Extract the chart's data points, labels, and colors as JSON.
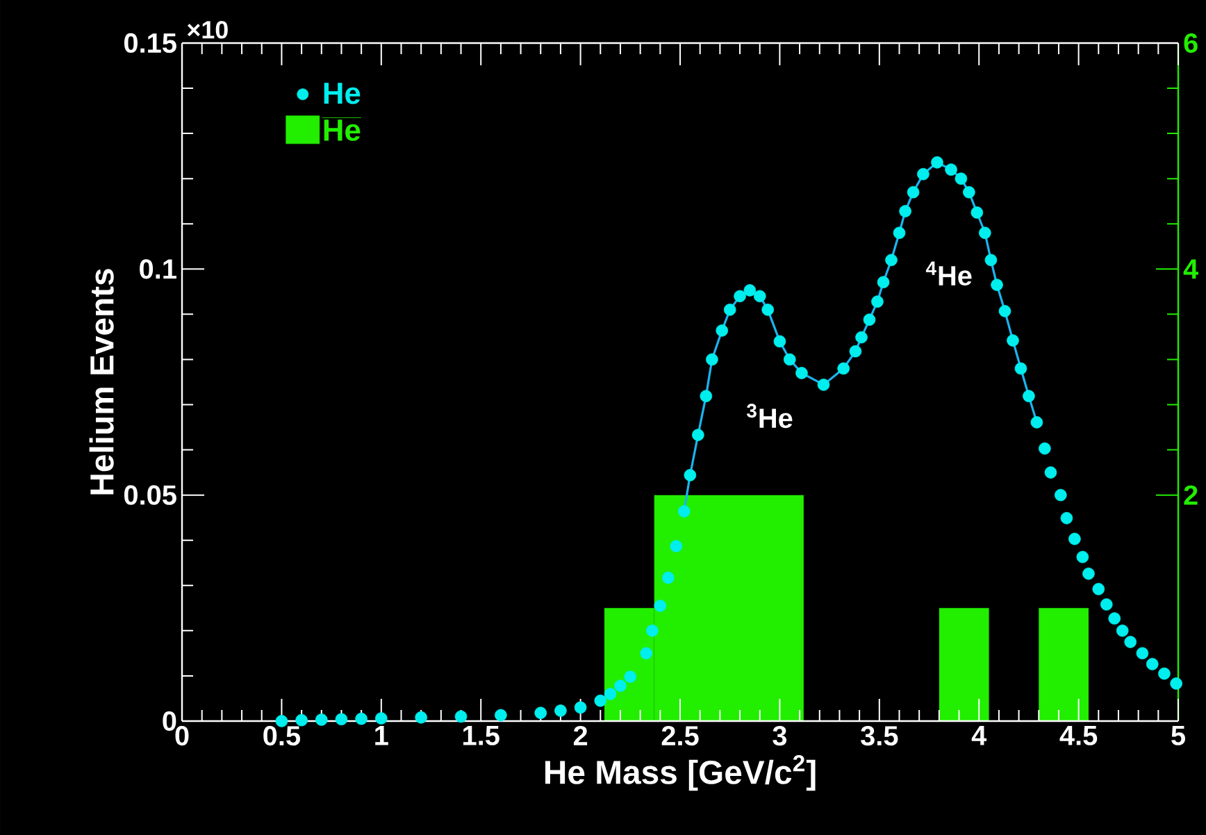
{
  "chart_data": {
    "type": "scatter",
    "xlabel": "He Mass [GeV/c$^{2}$]",
    "ylabel": "Helium Events",
    "xlim": [
      0,
      5
    ],
    "xticks": [
      0,
      0.5,
      1,
      1.5,
      2,
      2.5,
      3,
      3.5,
      4,
      4.5,
      5
    ],
    "ylim": [
      0,
      0.15
    ],
    "yticks": [
      0,
      0.05,
      0.1,
      0.15
    ],
    "y2lim": [
      0,
      6
    ],
    "y2ticks": [
      2,
      4,
      6
    ],
    "legend": "top left",
    "grid": false,
    "marker": "circle",
    "annotations": [
      "×10",
      "$^{3}$He",
      "$^{4}$He"
    ],
    "series": [
      {
        "name": "He",
        "color": "#00eeee",
        "x": [
          0.5,
          0.6,
          0.7,
          0.8,
          0.9,
          1.0,
          1.2,
          1.4,
          1.6,
          1.8,
          1.9,
          2.0,
          2.1,
          2.15,
          2.2,
          2.25,
          2.33,
          2.36,
          2.4,
          2.44,
          2.48,
          2.52,
          2.55,
          2.59,
          2.63,
          2.66,
          2.71,
          2.75,
          2.8,
          2.85,
          2.9,
          2.94,
          3.0,
          3.05,
          3.11,
          3.22,
          3.32,
          3.38,
          3.41,
          3.45,
          3.49,
          3.52,
          3.56,
          3.6,
          3.63,
          3.67,
          3.72,
          3.79,
          3.86,
          3.91,
          3.95,
          3.99,
          4.03,
          4.06,
          4.09,
          4.13,
          4.17,
          4.21,
          4.25,
          4.29,
          4.33,
          4.36,
          4.41,
          4.44,
          4.48,
          4.52,
          4.55,
          4.6,
          4.64,
          4.68,
          4.72,
          4.76,
          4.82,
          4.87,
          4.93,
          4.99
        ],
        "values": [
          0.0,
          0.0002,
          0.0003,
          0.0004,
          0.0005,
          0.0006,
          0.0008,
          0.001,
          0.0013,
          0.0018,
          0.0023,
          0.003,
          0.0045,
          0.006,
          0.0078,
          0.0098,
          0.015,
          0.02,
          0.0255,
          0.0317,
          0.0387,
          0.0464,
          0.0544,
          0.0633,
          0.0719,
          0.08,
          0.0864,
          0.091,
          0.094,
          0.0953,
          0.094,
          0.091,
          0.084,
          0.08,
          0.077,
          0.0744,
          0.078,
          0.0818,
          0.0849,
          0.0888,
          0.0928,
          0.0971,
          0.102,
          0.108,
          0.1128,
          0.117,
          0.121,
          0.1236,
          0.122,
          0.12,
          0.117,
          0.1125,
          0.108,
          0.102,
          0.0965,
          0.0907,
          0.0842,
          0.078,
          0.0719,
          0.0661,
          0.0603,
          0.055,
          0.05,
          0.0449,
          0.0403,
          0.0363,
          0.0326,
          0.0292,
          0.0258,
          0.0227,
          0.02,
          0.0175,
          0.015,
          0.0126,
          0.0105,
          0.0083
        ]
      },
      {
        "type": "line",
        "color": "#1ab4ee",
        "line_style": "solid",
        "marker": "none",
        "x": [
          2.52,
          2.55,
          2.59,
          2.63,
          2.66,
          2.71,
          2.75,
          2.8,
          2.85,
          2.9,
          2.94,
          3.0,
          3.05,
          3.11,
          3.22,
          3.32,
          3.38,
          3.41,
          3.45,
          3.49,
          3.52,
          3.56,
          3.6,
          3.63,
          3.67,
          3.72,
          3.79,
          3.86,
          3.91,
          3.95,
          3.99,
          4.03,
          4.06,
          4.09,
          4.13,
          4.17,
          4.21,
          4.25,
          4.29
        ],
        "values": [
          0.0464,
          0.0544,
          0.0633,
          0.0719,
          0.08,
          0.0864,
          0.091,
          0.094,
          0.0953,
          0.094,
          0.091,
          0.084,
          0.08,
          0.077,
          0.0744,
          0.078,
          0.0818,
          0.0849,
          0.0888,
          0.0928,
          0.0971,
          0.102,
          0.108,
          0.1128,
          0.117,
          0.121,
          0.1236,
          0.122,
          0.12,
          0.117,
          0.1125,
          0.108,
          0.102,
          0.0965,
          0.0907,
          0.0842,
          0.078,
          0.0719,
          0.0661
        ]
      },
      {
        "name": "He",
        "type": "histogram",
        "axis": "y2",
        "color": "#22ee00",
        "bins": [
          2.12,
          2.37,
          3.12,
          3.8,
          4.05,
          4.3,
          4.55
        ],
        "values": [
          1,
          2,
          0,
          1,
          0,
          1
        ]
      }
    ]
  }
}
